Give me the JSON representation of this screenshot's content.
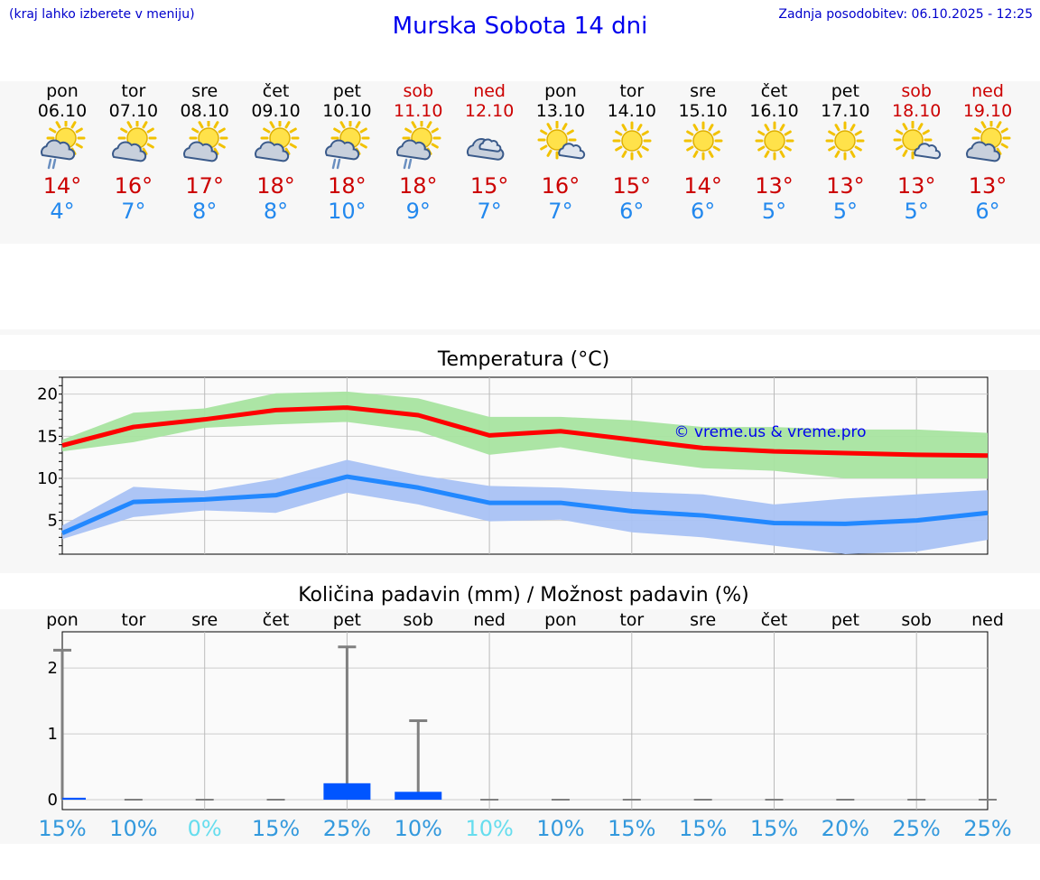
{
  "header": {
    "menu_hint": "(kraj lahko izberete v meniju)",
    "title": "Murska Sobota 14 dni",
    "updated": "Zadnja posodobitev: 06.10.2025 - 12:25"
  },
  "colors": {
    "weekday": "#000000",
    "weekend": "#cc0000",
    "tmax_line": "#ff0000",
    "tmax_band": "#a8e4a0",
    "tmin_line": "#2288ff",
    "tmin_band": "#a9c2f4",
    "bar": "#0055ff",
    "errorbar": "#808080",
    "pct": "#3399dd",
    "pct_light": "#66ddee"
  },
  "days": [
    {
      "name": "pon",
      "date": "06.10",
      "weekend": false,
      "icon": "sun-cloud-rain-icon",
      "tmax": "14°",
      "tmin": "4°"
    },
    {
      "name": "tor",
      "date": "07.10",
      "weekend": false,
      "icon": "sun-cloud-icon",
      "tmax": "16°",
      "tmin": "7°"
    },
    {
      "name": "sre",
      "date": "08.10",
      "weekend": false,
      "icon": "sun-cloud-icon",
      "tmax": "17°",
      "tmin": "8°"
    },
    {
      "name": "čet",
      "date": "09.10",
      "weekend": false,
      "icon": "sun-cloud-icon",
      "tmax": "18°",
      "tmin": "8°"
    },
    {
      "name": "pet",
      "date": "10.10",
      "weekend": false,
      "icon": "sun-cloud-rain-icon",
      "tmax": "18°",
      "tmin": "10°"
    },
    {
      "name": "sob",
      "date": "11.10",
      "weekend": true,
      "icon": "sun-cloud-rain-icon",
      "tmax": "18°",
      "tmin": "9°"
    },
    {
      "name": "ned",
      "date": "12.10",
      "weekend": true,
      "icon": "cloud-icon",
      "tmax": "15°",
      "tmin": "7°"
    },
    {
      "name": "pon",
      "date": "13.10",
      "weekend": false,
      "icon": "sun-small-cloud-icon",
      "tmax": "16°",
      "tmin": "7°"
    },
    {
      "name": "tor",
      "date": "14.10",
      "weekend": false,
      "icon": "sun-icon",
      "tmax": "15°",
      "tmin": "6°"
    },
    {
      "name": "sre",
      "date": "15.10",
      "weekend": false,
      "icon": "sun-icon",
      "tmax": "14°",
      "tmin": "6°"
    },
    {
      "name": "čet",
      "date": "16.10",
      "weekend": false,
      "icon": "sun-icon",
      "tmax": "13°",
      "tmin": "5°"
    },
    {
      "name": "pet",
      "date": "17.10",
      "weekend": false,
      "icon": "sun-icon",
      "tmax": "13°",
      "tmin": "5°"
    },
    {
      "name": "sob",
      "date": "18.10",
      "weekend": true,
      "icon": "sun-small-cloud-icon",
      "tmax": "13°",
      "tmin": "5°"
    },
    {
      "name": "ned",
      "date": "19.10",
      "weekend": true,
      "icon": "sun-cloud-icon",
      "tmax": "13°",
      "tmin": "6°"
    }
  ],
  "chart_data": [
    {
      "type": "line",
      "title": "Temperatura (°C)",
      "watermark": "© vreme.us & vreme.pro",
      "x_days": 13,
      "ylim": [
        1,
        22
      ],
      "yticks": [
        5,
        10,
        15,
        20
      ],
      "grid": true,
      "series": [
        {
          "x": [
            0,
            1,
            2,
            3,
            4,
            5,
            6,
            7,
            8,
            9,
            10,
            11,
            12,
            13
          ],
          "values": [
            13.9,
            16.1,
            17.0,
            18.1,
            18.4,
            17.5,
            15.1,
            15.6,
            14.6,
            13.6,
            13.2,
            13.0,
            12.8,
            12.7
          ],
          "band_low": [
            13.2,
            14.3,
            16.0,
            16.4,
            16.7,
            15.6,
            12.8,
            13.7,
            12.3,
            11.2,
            10.9,
            10.0,
            10.0,
            10.0
          ],
          "band_high": [
            14.6,
            17.8,
            18.3,
            20.1,
            20.3,
            19.5,
            17.3,
            17.3,
            16.9,
            16.1,
            16.1,
            15.8,
            15.8,
            15.4
          ]
        },
        {
          "x": [
            0,
            1,
            2,
            3,
            4,
            5,
            6,
            7,
            8,
            9,
            10,
            11,
            12,
            13
          ],
          "values": [
            3.5,
            7.2,
            7.5,
            8.0,
            10.2,
            8.9,
            7.1,
            7.1,
            6.1,
            5.6,
            4.7,
            4.6,
            5.0,
            5.9
          ],
          "band_low": [
            2.8,
            5.4,
            6.2,
            5.9,
            8.3,
            6.9,
            4.9,
            5.1,
            3.6,
            3.0,
            2.0,
            1.0,
            1.3,
            2.7
          ],
          "band_high": [
            4.4,
            9.0,
            8.5,
            9.9,
            12.2,
            10.4,
            9.1,
            8.9,
            8.4,
            8.1,
            6.9,
            7.6,
            8.1,
            8.6
          ]
        }
      ]
    },
    {
      "type": "bar",
      "title": "Količina padavin (mm) / Možnost padavin (%)",
      "ylim": [
        -0.15,
        2.55
      ],
      "yticks": [
        0,
        1,
        2
      ],
      "grid": true,
      "categories": [
        "pon",
        "tor",
        "sre",
        "čet",
        "pet",
        "sob",
        "ned",
        "pon",
        "tor",
        "sre",
        "čet",
        "pet",
        "sob",
        "ned"
      ],
      "values": [
        0.03,
        0,
        0,
        0,
        0.25,
        0.12,
        0,
        0,
        0,
        0,
        0,
        0,
        0,
        0
      ],
      "error_high": [
        2.27,
        0,
        0,
        0,
        2.32,
        1.2,
        0,
        0,
        0,
        0,
        0,
        0,
        0,
        0
      ],
      "probability": [
        "15%",
        "10%",
        "0%",
        "15%",
        "25%",
        "10%",
        "10%",
        "10%",
        "15%",
        "15%",
        "15%",
        "20%",
        "25%",
        "25%"
      ],
      "probability_light": [
        false,
        false,
        true,
        false,
        false,
        false,
        true,
        false,
        false,
        false,
        false,
        false,
        false,
        false
      ]
    }
  ]
}
